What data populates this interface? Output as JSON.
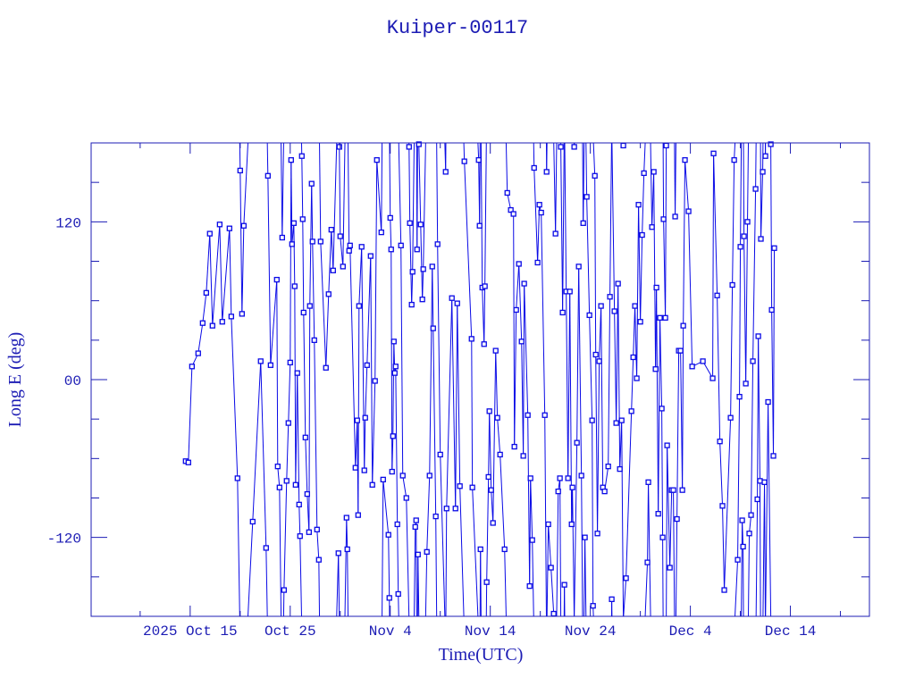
{
  "chart_data": {
    "type": "line",
    "title": "Kuiper-00117",
    "xlabel": "Time(UTC)",
    "ylabel": "Long E (deg)",
    "x_units": "days since 2025 Oct 15 00:00 UTC",
    "xlim": [
      -9.9,
      67.9
    ],
    "ylim": [
      -180,
      180
    ],
    "grid": false,
    "markers": "square",
    "x_ticks": [
      {
        "value": 0,
        "label": "2025 Oct 15"
      },
      {
        "value": 10,
        "label": "Oct 25"
      },
      {
        "value": 20,
        "label": "Nov  4"
      },
      {
        "value": 30,
        "label": "Nov 14"
      },
      {
        "value": 40,
        "label": "Nov 24"
      },
      {
        "value": 50,
        "label": "Dec  4"
      },
      {
        "value": 60,
        "label": "Dec 14"
      }
    ],
    "y_ticks": [
      {
        "value": 120,
        "label": "120"
      },
      {
        "value": 0,
        "label": "00"
      },
      {
        "value": -120,
        "label": "-120"
      }
    ],
    "colors": {
      "series": "#0a0ae6",
      "axes": "#1c1cb4"
    },
    "series": [
      {
        "name": "Kuiper-00117",
        "points": [
          [
            -0.45,
            -62
          ],
          [
            -0.18,
            -63
          ],
          [
            0.18,
            10
          ],
          [
            0.8,
            20
          ],
          [
            1.25,
            43
          ],
          [
            1.61,
            66
          ],
          [
            1.96,
            111
          ],
          [
            2.23,
            41
          ],
          [
            2.95,
            118
          ],
          [
            3.21,
            44
          ],
          [
            3.93,
            115
          ],
          [
            4.11,
            48
          ],
          [
            4.73,
            -75
          ],
          [
            5.0,
            159
          ],
          [
            5.18,
            50
          ],
          [
            5.36,
            117
          ],
          [
            6.25,
            -108
          ],
          [
            7.05,
            14
          ],
          [
            7.59,
            -128
          ],
          [
            7.77,
            155
          ],
          [
            8.04,
            11
          ],
          [
            8.66,
            76
          ],
          [
            8.75,
            -66
          ],
          [
            8.93,
            -82
          ],
          [
            9.2,
            108
          ],
          [
            9.38,
            -160
          ],
          [
            9.64,
            -77
          ],
          [
            9.82,
            -33
          ],
          [
            10.0,
            13
          ],
          [
            10.09,
            167
          ],
          [
            10.18,
            103
          ],
          [
            10.36,
            119
          ],
          [
            10.45,
            71
          ],
          [
            10.54,
            -80
          ],
          [
            10.71,
            5
          ],
          [
            10.89,
            -95
          ],
          [
            10.98,
            -119
          ],
          [
            11.16,
            170
          ],
          [
            11.25,
            122
          ],
          [
            11.34,
            51
          ],
          [
            11.52,
            -44
          ],
          [
            11.7,
            -87
          ],
          [
            11.88,
            -116
          ],
          [
            11.96,
            56
          ],
          [
            12.14,
            149
          ],
          [
            12.23,
            105
          ],
          [
            12.41,
            30
          ],
          [
            12.68,
            -114
          ],
          [
            12.86,
            -137
          ],
          [
            13.04,
            105
          ],
          [
            13.57,
            9
          ],
          [
            13.84,
            65
          ],
          [
            14.11,
            114
          ],
          [
            14.29,
            83
          ],
          [
            14.82,
            -132
          ],
          [
            14.91,
            177
          ],
          [
            15.0,
            109
          ],
          [
            15.27,
            86
          ],
          [
            15.63,
            -105
          ],
          [
            15.71,
            -129
          ],
          [
            15.89,
            98
          ],
          [
            15.98,
            102
          ],
          [
            16.52,
            -67
          ],
          [
            16.7,
            -31
          ],
          [
            16.79,
            -103
          ],
          [
            16.88,
            56
          ],
          [
            17.14,
            101
          ],
          [
            17.41,
            -69
          ],
          [
            17.5,
            -29
          ],
          [
            17.68,
            11
          ],
          [
            18.04,
            94
          ],
          [
            18.21,
            -80
          ],
          [
            18.48,
            -1
          ],
          [
            18.66,
            167
          ],
          [
            19.11,
            112
          ],
          [
            19.29,
            -76
          ],
          [
            19.82,
            -118
          ],
          [
            19.91,
            -166
          ],
          [
            20.0,
            123
          ],
          [
            20.09,
            99
          ],
          [
            20.18,
            -70
          ],
          [
            20.27,
            -43
          ],
          [
            20.36,
            29
          ],
          [
            20.45,
            5
          ],
          [
            20.54,
            10
          ],
          [
            20.71,
            -110
          ],
          [
            20.8,
            -163
          ],
          [
            21.07,
            102
          ],
          [
            21.25,
            -73
          ],
          [
            21.61,
            -90
          ],
          [
            21.88,
            177
          ],
          [
            21.96,
            119
          ],
          [
            22.14,
            57
          ],
          [
            22.23,
            82
          ],
          [
            22.5,
            -112
          ],
          [
            22.59,
            -107
          ],
          [
            22.68,
            99
          ],
          [
            22.77,
            -133
          ],
          [
            22.86,
            179
          ],
          [
            23.04,
            118
          ],
          [
            23.21,
            61
          ],
          [
            23.3,
            84
          ],
          [
            23.66,
            -131
          ],
          [
            23.93,
            -73
          ],
          [
            24.2,
            86
          ],
          [
            24.29,
            39
          ],
          [
            24.55,
            -104
          ],
          [
            24.73,
            103
          ],
          [
            25.0,
            -57
          ],
          [
            25.54,
            158
          ],
          [
            25.63,
            -98
          ],
          [
            26.16,
            62
          ],
          [
            26.52,
            -98
          ],
          [
            26.7,
            58
          ],
          [
            26.96,
            -81
          ],
          [
            27.41,
            166
          ],
          [
            28.13,
            31
          ],
          [
            28.21,
            -82
          ],
          [
            28.84,
            167
          ],
          [
            28.93,
            117
          ],
          [
            29.02,
            -129
          ],
          [
            29.2,
            70
          ],
          [
            29.38,
            27
          ],
          [
            29.46,
            71
          ],
          [
            29.64,
            -154
          ],
          [
            29.82,
            -74
          ],
          [
            29.91,
            -24
          ],
          [
            30.09,
            -84
          ],
          [
            30.27,
            -109
          ],
          [
            30.54,
            22
          ],
          [
            30.71,
            -29
          ],
          [
            30.98,
            -57
          ],
          [
            31.43,
            -129
          ],
          [
            31.7,
            142
          ],
          [
            32.05,
            129
          ],
          [
            32.32,
            126
          ],
          [
            32.41,
            -51
          ],
          [
            32.59,
            53
          ],
          [
            32.86,
            88
          ],
          [
            33.13,
            29
          ],
          [
            33.3,
            -58
          ],
          [
            33.39,
            73
          ],
          [
            33.75,
            -27
          ],
          [
            33.93,
            -157
          ],
          [
            34.02,
            -75
          ],
          [
            34.2,
            -122
          ],
          [
            34.38,
            161
          ],
          [
            34.73,
            89
          ],
          [
            34.91,
            133
          ],
          [
            35.09,
            127
          ],
          [
            35.45,
            -27
          ],
          [
            35.63,
            158
          ],
          [
            35.8,
            -110
          ],
          [
            36.07,
            -143
          ],
          [
            36.34,
            -178
          ],
          [
            36.52,
            111
          ],
          [
            36.79,
            -85
          ],
          [
            36.96,
            -75
          ],
          [
            37.05,
            177
          ],
          [
            37.23,
            51
          ],
          [
            37.41,
            -156
          ],
          [
            37.59,
            67
          ],
          [
            37.77,
            -75
          ],
          [
            37.95,
            67
          ],
          [
            38.13,
            -110
          ],
          [
            38.21,
            -82
          ],
          [
            38.39,
            177
          ],
          [
            38.66,
            -48
          ],
          [
            38.84,
            86
          ],
          [
            39.11,
            -73
          ],
          [
            39.29,
            119
          ],
          [
            39.46,
            -120
          ],
          [
            39.64,
            139
          ],
          [
            39.91,
            49
          ],
          [
            40.18,
            -31
          ],
          [
            40.27,
            -172
          ],
          [
            40.45,
            155
          ],
          [
            40.54,
            19
          ],
          [
            40.71,
            -117
          ],
          [
            40.89,
            14
          ],
          [
            41.07,
            56
          ],
          [
            41.25,
            -82
          ],
          [
            41.43,
            -85
          ],
          [
            41.79,
            -66
          ],
          [
            41.96,
            63
          ],
          [
            42.14,
            -167
          ],
          [
            42.41,
            52
          ],
          [
            42.59,
            -33
          ],
          [
            42.77,
            73
          ],
          [
            42.95,
            -68
          ],
          [
            43.13,
            -31
          ],
          [
            43.3,
            178
          ],
          [
            43.57,
            -151
          ],
          [
            44.11,
            -24
          ],
          [
            44.29,
            17
          ],
          [
            44.46,
            56
          ],
          [
            44.64,
            1
          ],
          [
            44.82,
            133
          ],
          [
            45.0,
            44
          ],
          [
            45.18,
            110
          ],
          [
            45.36,
            157
          ],
          [
            45.71,
            -139
          ],
          [
            45.8,
            -78
          ],
          [
            46.16,
            116
          ],
          [
            46.34,
            158
          ],
          [
            46.52,
            8
          ],
          [
            46.61,
            70
          ],
          [
            46.79,
            -102
          ],
          [
            46.96,
            47
          ],
          [
            47.14,
            -22
          ],
          [
            47.23,
            -120
          ],
          [
            47.32,
            122
          ],
          [
            47.5,
            47
          ],
          [
            47.59,
            178
          ],
          [
            47.68,
            -50
          ],
          [
            47.95,
            -143
          ],
          [
            48.13,
            -84
          ],
          [
            48.3,
            -84
          ],
          [
            48.48,
            124
          ],
          [
            48.66,
            -106
          ],
          [
            48.84,
            22
          ],
          [
            49.02,
            22
          ],
          [
            49.2,
            -84
          ],
          [
            49.29,
            41
          ],
          [
            49.46,
            167
          ],
          [
            49.82,
            128
          ],
          [
            50.18,
            10
          ],
          [
            51.25,
            14
          ],
          [
            52.23,
            1
          ],
          [
            52.32,
            172
          ],
          [
            52.68,
            64
          ],
          [
            52.95,
            -47
          ],
          [
            53.21,
            -96
          ],
          [
            53.39,
            -160
          ],
          [
            54.02,
            -29
          ],
          [
            54.2,
            72
          ],
          [
            54.38,
            167
          ],
          [
            54.73,
            -137
          ],
          [
            54.91,
            -13
          ],
          [
            55.0,
            101
          ],
          [
            55.18,
            -107
          ],
          [
            55.27,
            -127
          ],
          [
            55.36,
            109
          ],
          [
            55.54,
            -3
          ],
          [
            55.71,
            120
          ],
          [
            55.89,
            -117
          ],
          [
            56.07,
            -103
          ],
          [
            56.25,
            14
          ],
          [
            56.52,
            145
          ],
          [
            56.7,
            -91
          ],
          [
            56.79,
            33
          ],
          [
            56.96,
            -77
          ],
          [
            57.05,
            107
          ],
          [
            57.23,
            158
          ],
          [
            57.41,
            -78
          ],
          [
            57.5,
            170
          ],
          [
            57.77,
            -17
          ],
          [
            58.04,
            179
          ],
          [
            58.13,
            53
          ],
          [
            58.3,
            -58
          ],
          [
            58.39,
            100
          ]
        ]
      }
    ]
  }
}
